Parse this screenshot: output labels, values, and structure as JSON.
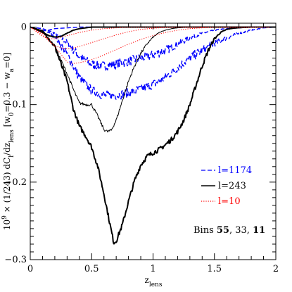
{
  "chart_data": {
    "type": "line",
    "xlim": [
      0,
      2
    ],
    "ylim": [
      -0.3,
      0.005
    ],
    "x_ticks": [
      {
        "value": 0,
        "label": "0"
      },
      {
        "value": 0.5,
        "label": "0.5"
      },
      {
        "value": 1,
        "label": "1"
      },
      {
        "value": 1.5,
        "label": "1.5"
      },
      {
        "value": 2,
        "label": "2"
      }
    ],
    "y_ticks": [
      {
        "value": 0,
        "label": "0"
      },
      {
        "value": -0.1,
        "label": "−0.1"
      },
      {
        "value": -0.2,
        "label": "−0.2"
      },
      {
        "value": -0.3,
        "label": "−0.3"
      }
    ],
    "xlabel": {
      "main": "z",
      "sub": "lens"
    },
    "ylabel": {
      "parts": [
        {
          "t": "10"
        },
        {
          "t": "9",
          "sup": true
        },
        {
          "t": " × (1/243)  dC"
        },
        {
          "t": "l",
          "sub": true
        },
        {
          "t": "/dz"
        },
        {
          "t": "lens",
          "sub": true
        },
        {
          "t": " [w"
        },
        {
          "t": "0",
          "sub": true
        },
        {
          "t": "=0.3 − w"
        },
        {
          "t": "a",
          "sub": true
        },
        {
          "t": "=0]"
        }
      ]
    },
    "legend": {
      "placement": "lower-right",
      "entries": [
        {
          "label": "l=1174",
          "color": "#0000ff",
          "style": "dashed"
        },
        {
          "label": "l=243",
          "color": "#000000",
          "style": "solid"
        },
        {
          "label": "l=10",
          "color": "#ff0000",
          "style": "dotted"
        }
      ]
    },
    "annotation": {
      "parts": [
        {
          "t": "Bins "
        },
        {
          "t": "55",
          "bold": true
        },
        {
          "t": ", 33, "
        },
        {
          "t": "11",
          "bold": true
        }
      ]
    },
    "series": [
      {
        "name": "l=1174",
        "bin": "55",
        "color": "#0000ff",
        "style": "dashed",
        "width": 1.4,
        "wiggle": 0.006,
        "x": [
          0,
          0.1,
          0.2,
          0.3,
          0.4,
          0.5,
          0.6,
          0.7,
          0.8,
          0.9,
          1.0,
          1.1,
          1.2,
          1.3,
          1.4,
          1.5,
          1.6,
          1.7,
          1.8,
          1.9,
          2.0
        ],
        "y": [
          0,
          -0.002,
          -0.008,
          -0.02,
          -0.038,
          -0.048,
          -0.05,
          -0.048,
          -0.044,
          -0.04,
          -0.036,
          -0.03,
          -0.022,
          -0.014,
          -0.008,
          -0.004,
          -0.002,
          -0.001,
          0,
          0,
          0
        ]
      },
      {
        "name": "l=1174",
        "bin": "33",
        "color": "#0000ff",
        "style": "dashed",
        "width": 1.4,
        "wiggle": 0.006,
        "x": [
          0,
          0.1,
          0.2,
          0.3,
          0.4,
          0.5,
          0.6,
          0.7,
          0.8,
          0.9,
          1.0,
          1.1,
          1.2,
          1.3,
          1.4,
          1.5,
          1.6,
          1.7,
          1.8,
          1.9,
          2.0
        ],
        "y": [
          0,
          -0.002,
          -0.012,
          -0.035,
          -0.065,
          -0.082,
          -0.088,
          -0.088,
          -0.085,
          -0.08,
          -0.074,
          -0.065,
          -0.052,
          -0.04,
          -0.03,
          -0.021,
          -0.014,
          -0.008,
          -0.004,
          -0.001,
          0
        ]
      },
      {
        "name": "l=1174",
        "bin": "11",
        "color": "#0000ff",
        "style": "dashed",
        "width": 1.4,
        "wiggle": 0.002,
        "x": [
          0,
          0.05,
          0.1,
          0.15,
          0.2,
          0.3,
          0.4,
          0.5,
          2.0
        ],
        "y": [
          0,
          -0.003,
          -0.005,
          -0.004,
          -0.002,
          -0.001,
          0,
          0,
          0
        ]
      },
      {
        "name": "l=243",
        "bin": "55",
        "color": "#000000",
        "style": "solid",
        "width": 2.0,
        "wiggle": 0.003,
        "x": [
          0,
          0.1,
          0.2,
          0.3,
          0.35,
          0.4,
          0.45,
          0.5,
          0.55,
          0.6,
          0.65,
          0.68,
          0.7,
          0.75,
          0.8,
          0.85,
          0.9,
          0.95,
          1.0,
          1.05,
          1.1,
          1.15,
          1.2,
          1.25,
          1.3,
          1.35,
          1.4,
          1.45,
          1.5,
          1.55,
          1.6,
          1.65,
          1.7,
          1.75,
          1.8,
          1.85,
          1.9,
          1.95,
          2.0
        ],
        "y": [
          0,
          -0.005,
          -0.025,
          -0.07,
          -0.105,
          -0.128,
          -0.14,
          -0.155,
          -0.18,
          -0.215,
          -0.255,
          -0.278,
          -0.276,
          -0.255,
          -0.225,
          -0.198,
          -0.178,
          -0.167,
          -0.162,
          -0.158,
          -0.152,
          -0.145,
          -0.135,
          -0.12,
          -0.1,
          -0.075,
          -0.05,
          -0.03,
          -0.015,
          -0.007,
          -0.003,
          -0.0015,
          -0.0008,
          -0.0003,
          0,
          0,
          0,
          0,
          0
        ]
      },
      {
        "name": "l=243",
        "bin": "33",
        "color": "#000000",
        "style": "solid",
        "width": 1.0,
        "wiggle": 0.002,
        "x": [
          0,
          0.1,
          0.2,
          0.3,
          0.35,
          0.4,
          0.45,
          0.5,
          0.55,
          0.6,
          0.63,
          0.66,
          0.7,
          0.75,
          0.8,
          0.85,
          0.9,
          0.95,
          1.0,
          1.05,
          1.1,
          1.15,
          1.2,
          1.3,
          1.4,
          2.0
        ],
        "y": [
          0,
          -0.005,
          -0.025,
          -0.06,
          -0.08,
          -0.098,
          -0.1,
          -0.1,
          -0.115,
          -0.132,
          -0.135,
          -0.133,
          -0.12,
          -0.095,
          -0.07,
          -0.05,
          -0.034,
          -0.022,
          -0.013,
          -0.007,
          -0.004,
          -0.002,
          -0.001,
          0,
          0,
          0
        ]
      },
      {
        "name": "l=243",
        "bin": "11",
        "color": "#000000",
        "style": "solid",
        "width": 2.0,
        "wiggle": 0.001,
        "x": [
          0,
          0.05,
          0.1,
          0.15,
          0.2,
          0.25,
          0.3,
          0.35,
          0.4,
          0.45,
          0.5,
          2.0
        ],
        "y": [
          0,
          -0.003,
          -0.007,
          -0.011,
          -0.013,
          -0.012,
          -0.008,
          -0.004,
          -0.002,
          -0.001,
          0,
          0
        ]
      },
      {
        "name": "l=10",
        "bin": "55",
        "color": "#ff0000",
        "style": "dotted",
        "width": 1.0,
        "wiggle": 0,
        "x": [
          0,
          0.1,
          0.2,
          0.25,
          0.3,
          0.35,
          0.4,
          0.5,
          0.6,
          0.7,
          0.8,
          0.9,
          1.0,
          1.1,
          1.2,
          1.3,
          1.4,
          1.5,
          1.6,
          1.7,
          2.0
        ],
        "y": [
          0,
          -0.008,
          -0.025,
          -0.035,
          -0.045,
          -0.047,
          -0.046,
          -0.042,
          -0.036,
          -0.029,
          -0.022,
          -0.016,
          -0.011,
          -0.007,
          -0.004,
          -0.002,
          -0.001,
          0,
          0,
          0,
          0
        ]
      },
      {
        "name": "l=10",
        "bin": "33",
        "color": "#ff0000",
        "style": "dotted",
        "width": 1.0,
        "wiggle": 0,
        "x": [
          0,
          0.1,
          0.15,
          0.2,
          0.25,
          0.3,
          0.35,
          0.4,
          0.5,
          0.6,
          0.7,
          0.8,
          0.9,
          1.0,
          1.1,
          1.2,
          2.0
        ],
        "y": [
          0,
          -0.01,
          -0.018,
          -0.024,
          -0.027,
          -0.028,
          -0.027,
          -0.025,
          -0.02,
          -0.015,
          -0.01,
          -0.006,
          -0.003,
          -0.0015,
          -0.0005,
          0,
          0
        ]
      },
      {
        "name": "l=10",
        "bin": "11",
        "color": "#ff0000",
        "style": "dotted",
        "width": 1.0,
        "wiggle": 0,
        "x": [
          0,
          0.05,
          0.1,
          0.15,
          0.2,
          0.25,
          0.3,
          0.4,
          0.5,
          0.6,
          0.7,
          0.8,
          2.0
        ],
        "y": [
          0,
          -0.006,
          -0.012,
          -0.015,
          -0.015,
          -0.013,
          -0.011,
          -0.007,
          -0.004,
          -0.002,
          -0.001,
          0,
          0
        ]
      }
    ]
  }
}
